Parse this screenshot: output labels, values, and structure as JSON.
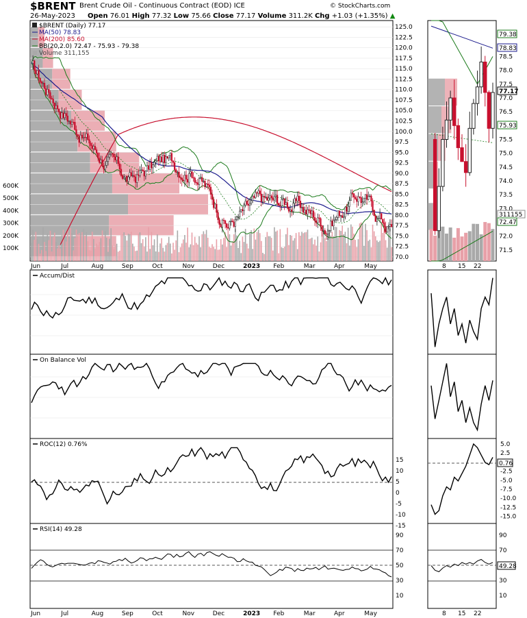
{
  "header": {
    "symbol": "$BRENT",
    "description": "Brent Crude Oil - Continuous Contract (EOD) ICE",
    "date": "26-May-2023",
    "open_label": "Open",
    "open": "76.01",
    "high_label": "High",
    "high": "77.32",
    "low_label": "Low",
    "low": "75.66",
    "close_label": "Close",
    "close": "77.17",
    "volume_label": "Volume",
    "volume": "311.2K",
    "chg_label": "Chg",
    "chg": "+1.03 (+1.35%)",
    "brand": "© StockCharts.com"
  },
  "colors": {
    "down": "#c8102e",
    "up": "#222222",
    "ma50": "#1a1a8c",
    "ma200": "#c8102e",
    "bb": "#1a7a1a",
    "vol_up": "#a9a9a9",
    "vol_down": "#e8a0a8"
  },
  "legend": {
    "price": "$BRENT (Daily) 77.17",
    "ma50": "MA(50) 78.83",
    "ma200": "MA(200) 85.60",
    "bb": "BB(20,2.0) 72.47 - 75.93 - 79.38",
    "volume": "Volume 311,155"
  },
  "panels": {
    "accum": "Accum/Dist",
    "obv": "On Balance Vol",
    "roc": "ROC(12) 0.76%",
    "rsi": "RSI(14) 49.28"
  },
  "markers": {
    "price": "77.17",
    "ma50": "78.83",
    "bb_upper": "79.38",
    "bb_lower": "72.47",
    "bb_mid": "75.93",
    "volume": "311155",
    "roc": "0.76",
    "rsi": "49.28"
  },
  "chart_data": {
    "type": "candlestick",
    "title": "$BRENT Brent Crude Oil - Continuous Contract (EOD) ICE",
    "x_labels": [
      "Jun",
      "Jul",
      "Aug",
      "Sep",
      "Oct",
      "Nov",
      "Dec",
      "2023",
      "Feb",
      "Mar",
      "Apr",
      "May"
    ],
    "zoom_x_labels": [
      "8",
      "15",
      "22"
    ],
    "price_ticks": [
      "125.0",
      "122.5",
      "120.0",
      "117.5",
      "115.0",
      "112.5",
      "110.0",
      "107.5",
      "105.0",
      "102.5",
      "100.0",
      "97.5",
      "95.0",
      "92.5",
      "90.0",
      "87.5",
      "85.0",
      "82.5",
      "80.0",
      "77.5",
      "75.0",
      "72.5",
      "70.0"
    ],
    "price_ylim": [
      69,
      126.5
    ],
    "zoom_price_ticks": [
      "78.5",
      "78.0",
      "77.5",
      "77.0",
      "76.5",
      "76.0",
      "75.5",
      "75.0",
      "74.5",
      "74.0",
      "73.5",
      "73.0",
      "72.5",
      "72.0",
      "71.5"
    ],
    "zoom_price_ylim": [
      71.1,
      79.8
    ],
    "volume_ticks": [
      "600K",
      "500K",
      "400K",
      "300K",
      "200K",
      "100K"
    ],
    "monthly_close": {
      "x": [
        "Jun",
        "Jul",
        "Aug",
        "Sep",
        "Oct",
        "Nov",
        "Dec",
        "2023",
        "Feb",
        "Mar",
        "Apr",
        "May"
      ],
      "values": [
        115,
        105,
        95,
        88,
        93,
        91,
        78,
        83,
        83,
        78,
        85,
        77
      ]
    },
    "zoom_last_closes": [
      75.5,
      72.2,
      73.8,
      75.5,
      76.2,
      77.0,
      76.0,
      75.2,
      74.7,
      74.3,
      75.9,
      76.8,
      77.4,
      78.3,
      77.2,
      75.9,
      77.2
    ],
    "volume_by_price": [
      {
        "price": 122.5,
        "value": 5
      },
      {
        "price": 117.5,
        "value": 8
      },
      {
        "price": 112.5,
        "value": 14
      },
      {
        "price": 107.5,
        "value": 18
      },
      {
        "price": 102.5,
        "value": 26
      },
      {
        "price": 97.5,
        "value": 30
      },
      {
        "price": 92.5,
        "value": 38
      },
      {
        "price": 87.5,
        "value": 52
      },
      {
        "price": 82.5,
        "value": 62
      },
      {
        "price": 77.5,
        "value": 50
      },
      {
        "price": 72.5,
        "value": 30
      }
    ],
    "roc_ticks": [
      "15",
      "10",
      "5",
      "0",
      "-5",
      "-10",
      "-15"
    ],
    "zoom_roc_ticks": [
      "5.0",
      "2.5",
      "0.0",
      "-2.5",
      "-5.0",
      "-7.5",
      "-10.0",
      "-12.5",
      "-15.0"
    ],
    "rsi_ticks": [
      "90",
      "70",
      "50",
      "30",
      "10"
    ]
  }
}
